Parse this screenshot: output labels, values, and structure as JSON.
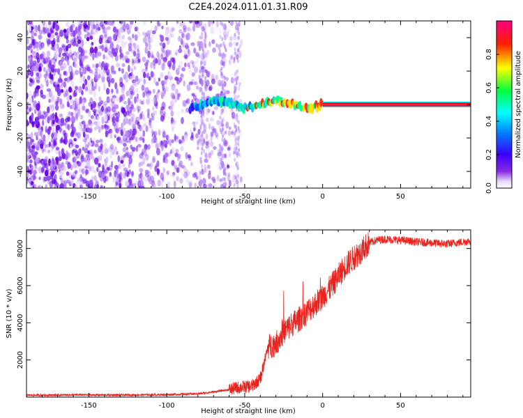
{
  "title": "C2E4.2024.011.01.31.R09",
  "colors": {
    "snr_line": "#e8221c",
    "spectrum_hot": "#ff0000",
    "spectrum_cold": "#8a2be2",
    "background": "#ffffff"
  },
  "chart_data": [
    {
      "type": "heatmap",
      "name": "spectrogram",
      "xlabel": "Height of straight line (km)",
      "ylabel": "Frequency (Hz)",
      "xlim": [
        -190,
        95
      ],
      "ylim": [
        -50,
        50
      ],
      "xticks": [
        -150,
        -100,
        -50,
        0,
        50
      ],
      "yticks": [
        -40,
        -20,
        0,
        20,
        40
      ],
      "colorbar": {
        "label": "Normalized spectral amplitude",
        "range": [
          0,
          1
        ],
        "ticks": [
          0.0,
          0.2,
          0.4,
          0.6,
          0.8
        ],
        "colormap": "rainbow (violet → blue → cyan → green → yellow → red → magenta)"
      },
      "description_values": {
        "noise_region_x": [
          -190,
          -52
        ],
        "carrier_frequency_hz": 0,
        "carrier_start_x": -85,
        "saturated_carrier_x": [
          0,
          95
        ]
      }
    },
    {
      "type": "line",
      "name": "snr",
      "xlabel": "Height of straight line (km)",
      "ylabel": "SNR (10 * v/v)",
      "xlim": [
        -190,
        95
      ],
      "ylim": [
        0,
        9000
      ],
      "xticks": [
        -150,
        -100,
        -50,
        0,
        50
      ],
      "yticks": [
        2000,
        4000,
        6000,
        8000
      ],
      "x": [
        -190,
        -160,
        -130,
        -100,
        -80,
        -70,
        -60,
        -55,
        -50,
        -45,
        -40,
        -35,
        -30,
        -25,
        -20,
        -15,
        -10,
        -5,
        0,
        5,
        10,
        15,
        20,
        25,
        30,
        35,
        40,
        50,
        60,
        70,
        80,
        90,
        95
      ],
      "y": [
        100,
        120,
        110,
        130,
        180,
        280,
        400,
        500,
        550,
        600,
        1000,
        2700,
        2900,
        3500,
        3900,
        4200,
        4600,
        5000,
        5400,
        5900,
        6500,
        7100,
        7500,
        7900,
        8300,
        8450,
        8500,
        8450,
        8350,
        8300,
        8250,
        8350,
        8400
      ]
    }
  ]
}
